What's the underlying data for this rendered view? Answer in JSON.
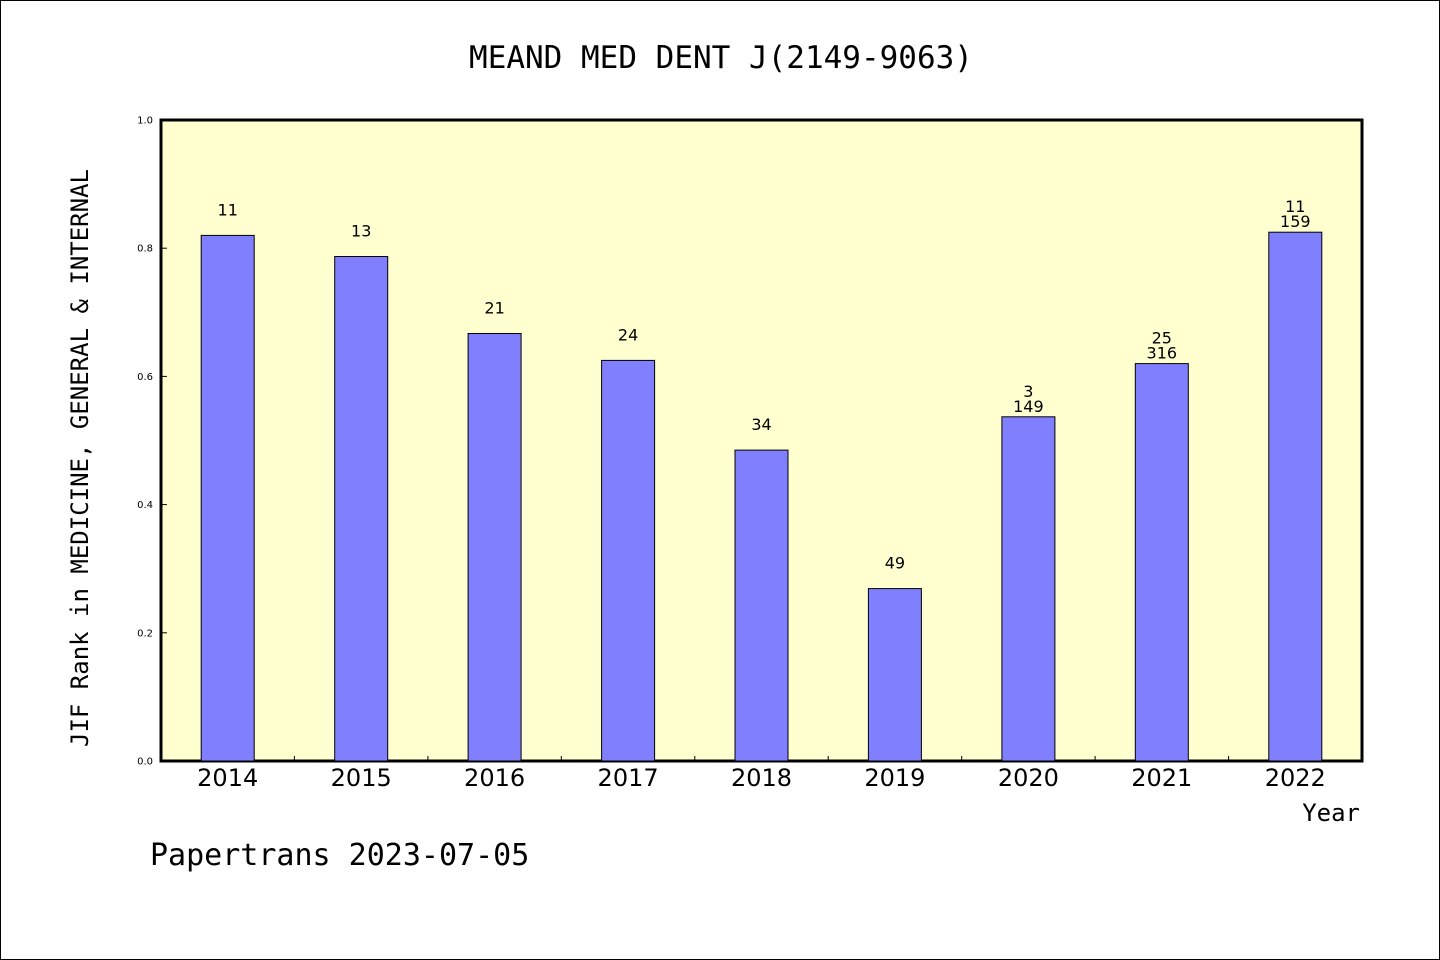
{
  "chart_data": {
    "type": "bar",
    "title": "MEAND MED DENT J(2149-9063)",
    "xlabel": "Year",
    "ylabel": "JIF Rank in MEDICINE, GENERAL & INTERNAL",
    "ylim": [
      0,
      1.0
    ],
    "yticks": [
      "0.0",
      "0.2",
      "0.4",
      "0.6",
      "0.8",
      "1.0"
    ],
    "grid": false,
    "legend": "none",
    "categories": [
      "2014",
      "2015",
      "2016",
      "2017",
      "2018",
      "2019",
      "2020",
      "2021",
      "2022"
    ],
    "values": [
      0.82,
      0.787,
      0.667,
      0.625,
      0.485,
      0.269,
      0.537,
      0.62,
      0.825
    ],
    "bar_labels": [
      [
        "11"
      ],
      [
        "13"
      ],
      [
        "21"
      ],
      [
        "24"
      ],
      [
        "34"
      ],
      [
        "49"
      ],
      [
        "3",
        "149"
      ],
      [
        "25",
        "316"
      ],
      [
        "11",
        "159"
      ]
    ],
    "footer": "Papertrans 2023-07-05",
    "colors": {
      "bar": "#8080ff",
      "plot_background": "#ffffd0",
      "axis": "#000000"
    }
  }
}
